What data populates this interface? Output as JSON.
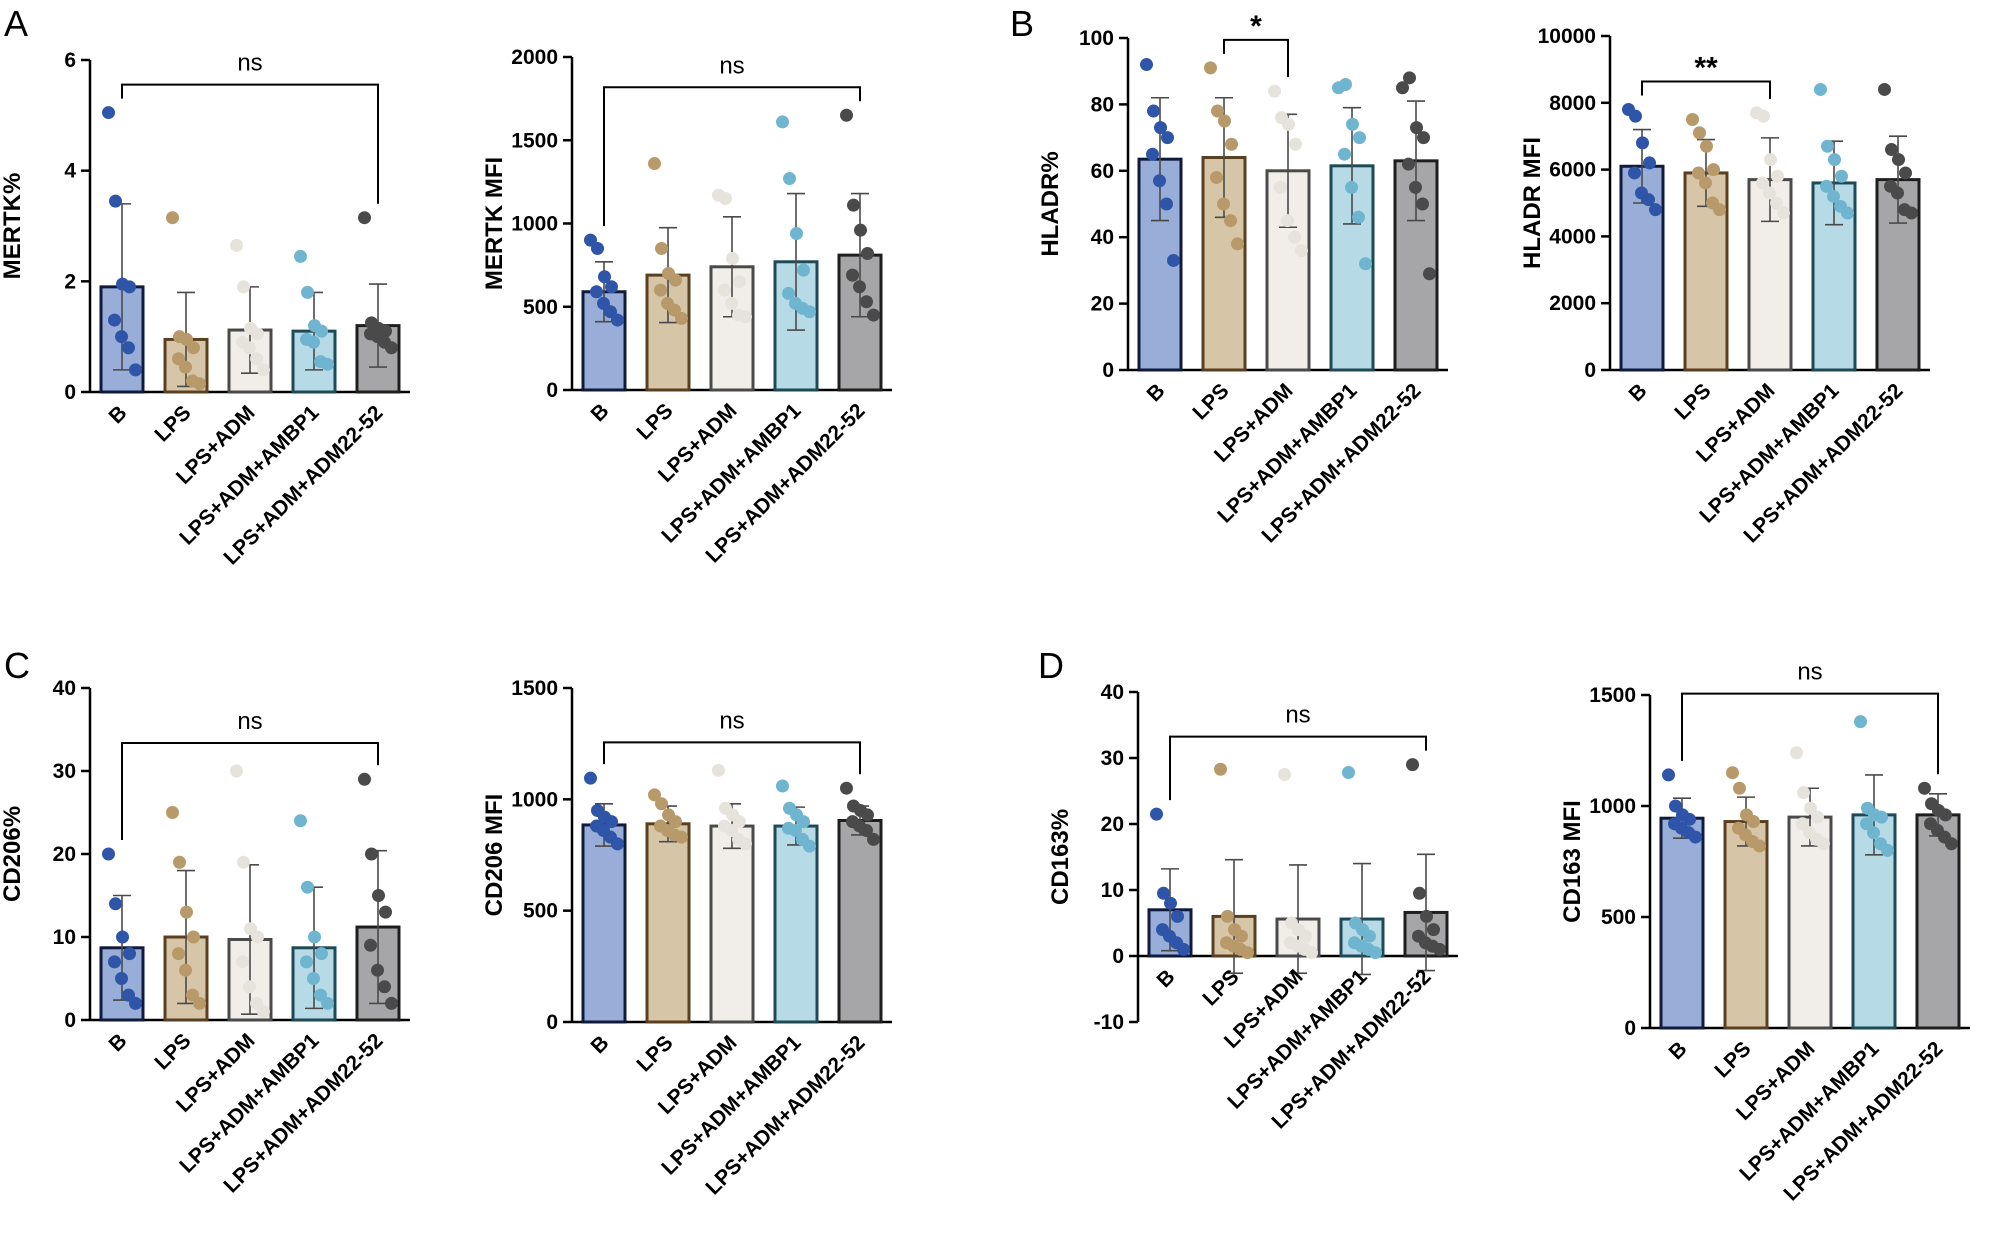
{
  "figure": {
    "panel_letters": [
      "A",
      "B",
      "C",
      "D"
    ],
    "group_colors": {
      "fill": [
        "#98aed8",
        "#d6c5a6",
        "#f1eee9",
        "#b7dbe6",
        "#a6a6a8"
      ],
      "edge": [
        "#101a3c",
        "#5a4021",
        "#4a4a4a",
        "#1e4a56",
        "#1e1e1e"
      ],
      "dot": [
        "#2e55a8",
        "#b89a6a",
        "#e6e3dc",
        "#6fb5d0",
        "#4a4a4a"
      ]
    }
  },
  "chart_data": [
    {
      "id": "mertk-pct",
      "panel": "A",
      "type": "bar",
      "title": "",
      "xlabel": "",
      "ylabel": "MERTK%",
      "ylim": [
        0,
        6
      ],
      "yticks": [
        0,
        2,
        4,
        6
      ],
      "ytick_labels": [
        "0",
        "2",
        "4",
        "6"
      ],
      "grid": false,
      "legend": "none",
      "categories": [
        "B",
        "LPS",
        "LPS+ADM",
        "LPS+ADM+AMBP1",
        "LPS+ADM+ADM22-52"
      ],
      "values": [
        1.9,
        0.95,
        1.12,
        1.1,
        1.2
      ],
      "sd": [
        1.5,
        0.85,
        0.78,
        0.7,
        0.75
      ],
      "points": [
        [
          5.05,
          3.45,
          1.95,
          1.9,
          1.3,
          1.0,
          0.8,
          0.4
        ],
        [
          3.15,
          1.0,
          0.95,
          0.8,
          0.6,
          0.45,
          0.2,
          0.15
        ],
        [
          2.65,
          1.9,
          1.15,
          1.05,
          0.9,
          0.8,
          0.6,
          0.4
        ],
        [
          2.45,
          1.8,
          1.2,
          1.1,
          0.95,
          0.9,
          0.55,
          0.5
        ],
        [
          3.15,
          1.25,
          1.15,
          1.1,
          1.05,
          1.0,
          0.9,
          0.8
        ]
      ],
      "significance": [
        {
          "from": 0,
          "to": 4,
          "label": "ns"
        }
      ]
    },
    {
      "id": "mertk-mfi",
      "panel": "",
      "type": "bar",
      "title": "",
      "xlabel": "",
      "ylabel": "MERTK MFI",
      "ylim": [
        0,
        2000
      ],
      "yticks": [
        0,
        500,
        1000,
        1500,
        2000
      ],
      "ytick_labels": [
        "0",
        "500",
        "1000",
        "1500",
        "2000"
      ],
      "grid": false,
      "legend": "none",
      "categories": [
        "B",
        "LPS",
        "LPS+ADM",
        "LPS+ADM+AMBP1",
        "LPS+ADM+ADM22-52"
      ],
      "values": [
        590,
        690,
        740,
        770,
        810
      ],
      "sd": [
        180,
        285,
        300,
        410,
        370
      ],
      "points": [
        [
          900,
          850,
          680,
          620,
          590,
          520,
          470,
          420
        ],
        [
          1360,
          850,
          700,
          660,
          600,
          520,
          480,
          430
        ],
        [
          1170,
          1150,
          790,
          650,
          600,
          520,
          450,
          440
        ],
        [
          1610,
          1270,
          940,
          720,
          580,
          520,
          490,
          470
        ],
        [
          1650,
          1110,
          960,
          820,
          690,
          620,
          530,
          450
        ]
      ],
      "significance": [
        {
          "from": 0,
          "to": 4,
          "label": "ns"
        }
      ]
    },
    {
      "id": "hladr-pct",
      "panel": "B",
      "type": "bar",
      "title": "",
      "xlabel": "",
      "ylabel": "HLADR%",
      "ylim": [
        0,
        100
      ],
      "yticks": [
        0,
        20,
        40,
        60,
        80,
        100
      ],
      "ytick_labels": [
        "0",
        "20",
        "40",
        "60",
        "80",
        "100"
      ],
      "grid": false,
      "legend": "none",
      "categories": [
        "B",
        "LPS",
        "LPS+ADM",
        "LPS+ADM+AMBP1",
        "LPS+ADM+ADM22-52"
      ],
      "values": [
        63.5,
        64,
        60,
        61.5,
        63
      ],
      "sd": [
        18.5,
        18,
        17,
        17.5,
        18
      ],
      "points": [
        [
          92,
          78,
          73,
          70,
          65,
          57,
          50,
          33
        ],
        [
          91,
          78,
          75,
          68,
          58,
          50,
          45,
          38
        ],
        [
          84,
          76,
          74,
          68,
          55,
          45,
          40,
          36
        ],
        [
          85,
          86,
          74,
          70,
          65,
          55,
          46,
          32
        ],
        [
          85,
          88,
          73,
          70,
          62,
          55,
          50,
          29
        ]
      ],
      "significance": [
        {
          "from": 1,
          "to": 2,
          "label": "*"
        }
      ]
    },
    {
      "id": "hladr-mfi",
      "panel": "",
      "type": "bar",
      "title": "",
      "xlabel": "",
      "ylabel": "HLADR MFI",
      "ylim": [
        0,
        10000
      ],
      "yticks": [
        0,
        2000,
        4000,
        6000,
        8000,
        10000
      ],
      "ytick_labels": [
        "0",
        "2000",
        "4000",
        "6000",
        "8000",
        "10000"
      ],
      "grid": false,
      "legend": "none",
      "categories": [
        "B",
        "LPS",
        "LPS+ADM",
        "LPS+ADM+AMBP1",
        "LPS+ADM+ADM22-52"
      ],
      "values": [
        6100,
        5900,
        5700,
        5600,
        5700
      ],
      "sd": [
        1100,
        1000,
        1250,
        1250,
        1300
      ],
      "points": [
        [
          7800,
          7600,
          6800,
          6200,
          5900,
          5300,
          5100,
          4800
        ],
        [
          7500,
          7100,
          6700,
          6000,
          5900,
          5600,
          5000,
          4800
        ],
        [
          7700,
          7600,
          6300,
          5800,
          5600,
          5300,
          5000,
          4700
        ],
        [
          8400,
          6700,
          6300,
          5800,
          5500,
          5200,
          4900,
          4700
        ],
        [
          8400,
          6600,
          6300,
          5900,
          5500,
          5300,
          4800,
          4700
        ]
      ],
      "significance": [
        {
          "from": 0,
          "to": 2,
          "label": "**"
        }
      ]
    },
    {
      "id": "cd206-pct",
      "panel": "C",
      "type": "bar",
      "title": "",
      "xlabel": "",
      "ylabel": "CD206%",
      "ylim": [
        0,
        40
      ],
      "yticks": [
        0,
        10,
        20,
        30,
        40
      ],
      "ytick_labels": [
        "0",
        "10",
        "20",
        "30",
        "40"
      ],
      "grid": false,
      "legend": "none",
      "categories": [
        "B",
        "LPS",
        "LPS+ADM",
        "LPS+ADM+AMBP1",
        "LPS+ADM+ADM22-52"
      ],
      "values": [
        8.7,
        10,
        9.7,
        8.7,
        11.2
      ],
      "sd": [
        6.3,
        8,
        9,
        7.3,
        9.2
      ],
      "points": [
        [
          20,
          14,
          10,
          8,
          7,
          5,
          3,
          2
        ],
        [
          25,
          19,
          13,
          10,
          8,
          6,
          3,
          2
        ],
        [
          30,
          19,
          11,
          10,
          7,
          4,
          2,
          1
        ],
        [
          24,
          16,
          10,
          8,
          7,
          5,
          3,
          2
        ],
        [
          29,
          20,
          15,
          13,
          9,
          6,
          4,
          2
        ]
      ],
      "significance": [
        {
          "from": 0,
          "to": 4,
          "label": "ns"
        }
      ]
    },
    {
      "id": "cd206-mfi",
      "panel": "",
      "type": "bar",
      "title": "",
      "xlabel": "",
      "ylabel": "CD206 MFI",
      "ylim": [
        0,
        1500
      ],
      "yticks": [
        0,
        500,
        1000,
        1500
      ],
      "ytick_labels": [
        "0",
        "500",
        "1000",
        "1500"
      ],
      "grid": false,
      "legend": "none",
      "categories": [
        "B",
        "LPS",
        "LPS+ADM",
        "LPS+ADM+AMBP1",
        "LPS+ADM+ADM22-52"
      ],
      "values": [
        885,
        890,
        880,
        880,
        905
      ],
      "sd": [
        95,
        80,
        100,
        85,
        65
      ],
      "points": [
        [
          1095,
          950,
          920,
          900,
          880,
          860,
          830,
          800
        ],
        [
          1020,
          980,
          930,
          900,
          880,
          860,
          840,
          830
        ],
        [
          1130,
          960,
          930,
          900,
          880,
          860,
          820,
          800
        ],
        [
          1060,
          960,
          930,
          900,
          870,
          860,
          820,
          790
        ],
        [
          1050,
          970,
          950,
          930,
          900,
          880,
          860,
          820
        ]
      ],
      "significance": [
        {
          "from": 0,
          "to": 4,
          "label": "ns"
        }
      ]
    },
    {
      "id": "cd163-pct",
      "panel": "D",
      "type": "bar",
      "title": "",
      "xlabel": "",
      "ylabel": "CD163%",
      "ylim": [
        -10,
        40
      ],
      "yticks": [
        -10,
        0,
        10,
        20,
        30,
        40
      ],
      "ytick_labels": [
        "-10",
        "0",
        "10",
        "20",
        "30",
        "40"
      ],
      "grid": false,
      "legend": "none",
      "categories": [
        "B",
        "LPS",
        "LPS+ADM",
        "LPS+ADM+AMBP1",
        "LPS+ADM+ADM22-52"
      ],
      "values": [
        7,
        6,
        5.6,
        5.6,
        6.6
      ],
      "sd": [
        6.2,
        8.6,
        8.2,
        8.4,
        8.8
      ],
      "points": [
        [
          21.5,
          9.5,
          8,
          6,
          4,
          3,
          2,
          1
        ],
        [
          28.3,
          6,
          4,
          3,
          2,
          1.5,
          1,
          0.5
        ],
        [
          27.5,
          5,
          4,
          3,
          2,
          1.5,
          1,
          0.5
        ],
        [
          27.8,
          5,
          4,
          3,
          2,
          1.5,
          1,
          0.5
        ],
        [
          29,
          9.5,
          6,
          4,
          3,
          2,
          1.5,
          1
        ]
      ],
      "significance": [
        {
          "from": 0,
          "to": 4,
          "label": "ns"
        }
      ]
    },
    {
      "id": "cd163-mfi",
      "panel": "",
      "type": "bar",
      "title": "",
      "xlabel": "",
      "ylabel": "CD163 MFI",
      "ylim": [
        0,
        1500
      ],
      "yticks": [
        0,
        500,
        1000,
        1500
      ],
      "ytick_labels": [
        "0",
        "500",
        "1000",
        "1500"
      ],
      "grid": false,
      "legend": "none",
      "categories": [
        "B",
        "LPS",
        "LPS+ADM",
        "LPS+ADM+AMBP1",
        "LPS+ADM+ADM22-52"
      ],
      "values": [
        945,
        930,
        950,
        960,
        960
      ],
      "sd": [
        90,
        110,
        130,
        180,
        95
      ],
      "points": [
        [
          1140,
          1000,
          960,
          940,
          920,
          900,
          880,
          860
        ],
        [
          1150,
          1080,
          960,
          930,
          900,
          870,
          840,
          820
        ],
        [
          1240,
          1060,
          990,
          950,
          920,
          880,
          850,
          830
        ],
        [
          1380,
          990,
          960,
          950,
          920,
          880,
          830,
          800
        ],
        [
          1080,
          1010,
          980,
          960,
          920,
          890,
          860,
          830
        ]
      ],
      "significance": [
        {
          "from": 0,
          "to": 4,
          "label": "ns"
        }
      ]
    }
  ]
}
